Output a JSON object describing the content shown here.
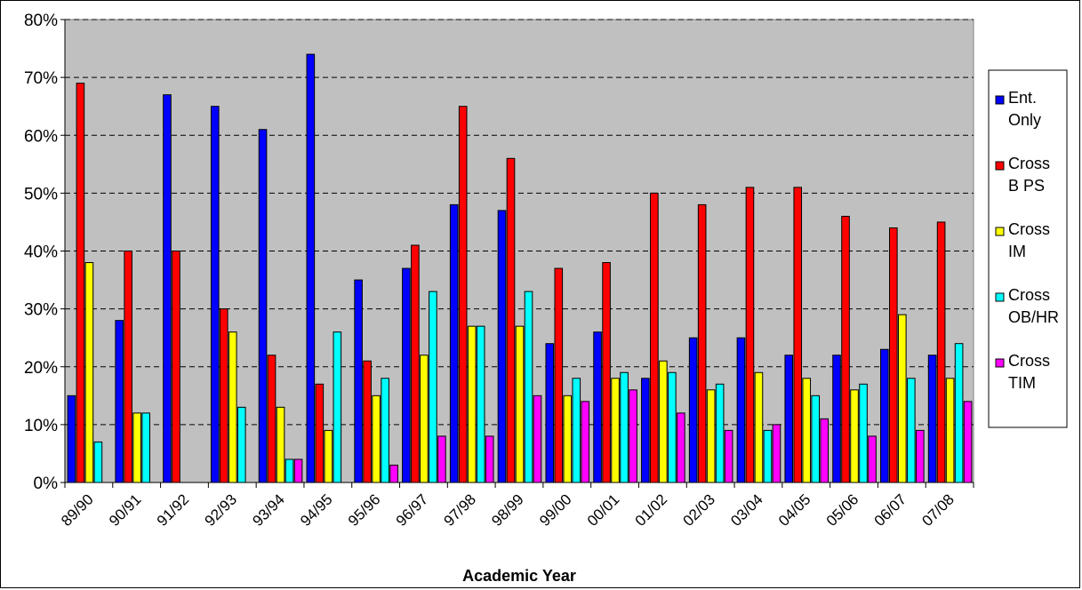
{
  "chart_data": {
    "type": "bar",
    "title": "",
    "xlabel": "Academic Year",
    "ylabel": "",
    "ylim": [
      0,
      80
    ],
    "ytick_labels": [
      "0%",
      "10%",
      "20%",
      "30%",
      "40%",
      "50%",
      "60%",
      "70%",
      "80%"
    ],
    "grid": true,
    "legend_position": "right",
    "categories": [
      "89/90",
      "90/91",
      "91/92",
      "92/93",
      "93/94",
      "94/95",
      "95/96",
      "96/97",
      "97/98",
      "98/99",
      "99/00",
      "00/01",
      "01/02",
      "02/03",
      "03/04",
      "04/05",
      "05/06",
      "06/07",
      "07/08"
    ],
    "series": [
      {
        "name": "Ent. Only",
        "legend_lines": [
          "Ent.",
          "Only"
        ],
        "color": "#0000ff",
        "values": [
          15,
          28,
          67,
          65,
          61,
          74,
          35,
          37,
          48,
          47,
          24,
          26,
          18,
          25,
          25,
          22,
          22,
          23,
          22
        ]
      },
      {
        "name": "Cross B PS",
        "legend_lines": [
          "Cross",
          "B PS"
        ],
        "color": "#ff0000",
        "values": [
          69,
          40,
          40,
          30,
          22,
          17,
          21,
          41,
          65,
          56,
          37,
          38,
          50,
          48,
          51,
          51,
          46,
          44,
          45
        ]
      },
      {
        "name": "Cross IM",
        "legend_lines": [
          "Cross",
          "IM"
        ],
        "color": "#ffff00",
        "values": [
          38,
          12,
          0,
          26,
          13,
          9,
          15,
          22,
          27,
          27,
          15,
          18,
          21,
          16,
          19,
          18,
          16,
          29,
          18
        ]
      },
      {
        "name": "Cross OB/HR",
        "legend_lines": [
          "Cross",
          "OB/HR"
        ],
        "color": "#00ffff",
        "values": [
          7,
          12,
          0,
          13,
          4,
          26,
          18,
          33,
          27,
          33,
          18,
          19,
          19,
          17,
          9,
          15,
          17,
          18,
          24
        ]
      },
      {
        "name": "Cross TIM",
        "legend_lines": [
          "Cross",
          "TIM"
        ],
        "color": "#ff00ff",
        "values": [
          0,
          0,
          0,
          0,
          4,
          0,
          3,
          8,
          8,
          15,
          14,
          16,
          12,
          9,
          10,
          11,
          8,
          9,
          14
        ]
      }
    ],
    "colors": {
      "plot_background": "#c0c0c0",
      "grid": "#000000",
      "bar_outline": "#000000"
    }
  }
}
